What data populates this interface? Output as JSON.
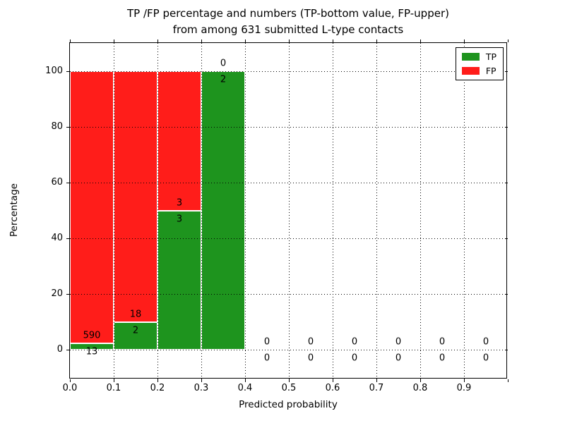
{
  "title": {
    "line1": "TP /FP percentage and numbers (TP-bottom value, FP-upper)",
    "line2": "from among 631 submitted L-type contacts"
  },
  "chart_data": {
    "type": "bar",
    "stacked": true,
    "title": "TP /FP percentage and numbers (TP-bottom value, FP-upper) from among 631 submitted L-type contacts",
    "xlabel": "Predicted probability",
    "ylabel": "Percentage",
    "xlim": [
      0.0,
      1.0
    ],
    "ylim": [
      -10.6,
      110.1
    ],
    "grid": true,
    "bin_width": 0.1,
    "bin_starts": [
      0.0,
      0.1,
      0.2,
      0.3,
      0.4,
      0.5,
      0.6,
      0.7,
      0.8,
      0.9
    ],
    "x_tick_labels": [
      "0.0",
      "0.1",
      "0.2",
      "0.3",
      "0.4",
      "0.5",
      "0.6",
      "0.7",
      "0.8",
      "0.9"
    ],
    "y_tick_values": [
      0,
      20,
      40,
      60,
      80,
      100
    ],
    "series": [
      {
        "name": "TP",
        "color": "#1e941e",
        "counts": [
          13,
          2,
          3,
          2,
          0,
          0,
          0,
          0,
          0,
          0
        ],
        "pct": [
          2.16,
          10,
          50,
          100,
          0,
          0,
          0,
          0,
          0,
          0
        ]
      },
      {
        "name": "FP",
        "color": "#ff1d1a",
        "counts": [
          590,
          18,
          3,
          0,
          0,
          0,
          0,
          0,
          0,
          0
        ],
        "pct": [
          97.84,
          90,
          50,
          0,
          0,
          0,
          0,
          0,
          0,
          0
        ]
      }
    ],
    "legend": {
      "position": "upper right",
      "entries": [
        {
          "label": "TP",
          "color": "#1e941e"
        },
        {
          "label": "FP",
          "color": "#ff1d1a"
        }
      ]
    }
  },
  "colors": {
    "tp": "#1e941e",
    "fp": "#ff1d1a",
    "grid": "#000000",
    "spine": "#000000",
    "background": "#ffffff"
  }
}
